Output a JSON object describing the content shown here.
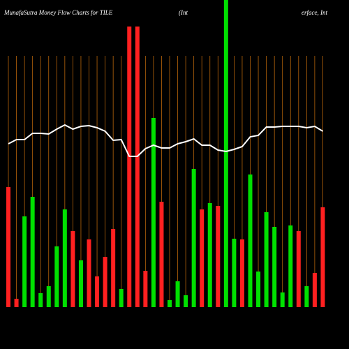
{
  "chart_data": {
    "type": "money-flow",
    "title": "MunafaSutra  Money Flow  Charts for TILE",
    "subtitle_left": "(Int",
    "subtitle_right": "erface, Int",
    "ylim": [
      0,
      440
    ],
    "grid_color": "#b8650a",
    "line_color": "#ffffff",
    "values": [
      172,
      12,
      130,
      158,
      20,
      30,
      87,
      140,
      109,
      67,
      97,
      44,
      72,
      112,
      26,
      402,
      402,
      52,
      271,
      151,
      10,
      37,
      17,
      198,
      140,
      149,
      145,
      440,
      98,
      97,
      190,
      51,
      136,
      115,
      21,
      117,
      109,
      30,
      49,
      143
    ],
    "bar_colors": [
      "#ff2020",
      "#ff2020",
      "#00e000",
      "#00e000",
      "#00e000",
      "#00e000",
      "#00e000",
      "#00e000",
      "#ff2020",
      "#00e000",
      "#ff2020",
      "#ff2020",
      "#ff2020",
      "#ff2020",
      "#00e000",
      "#ff2020",
      "#ff2020",
      "#ff2020",
      "#00e000",
      "#ff2020",
      "#00e000",
      "#00e000",
      "#00e000",
      "#00e000",
      "#ff2020",
      "#00e000",
      "#ff2020",
      "#00e000",
      "#00e000",
      "#ff2020",
      "#00e000",
      "#00e000",
      "#00e000",
      "#00e000",
      "#00e000",
      "#00e000",
      "#ff2020",
      "#00e000",
      "#ff2020",
      "#ff2020"
    ],
    "line_values": [
      234,
      240,
      240,
      249,
      249,
      248,
      255,
      261,
      255,
      259,
      260,
      257,
      252,
      239,
      240,
      216,
      216,
      227,
      232,
      228,
      228,
      234,
      237,
      241,
      232,
      232,
      225,
      223,
      226,
      230,
      244,
      246,
      258,
      258,
      259,
      259,
      259,
      257,
      259,
      252
    ]
  }
}
